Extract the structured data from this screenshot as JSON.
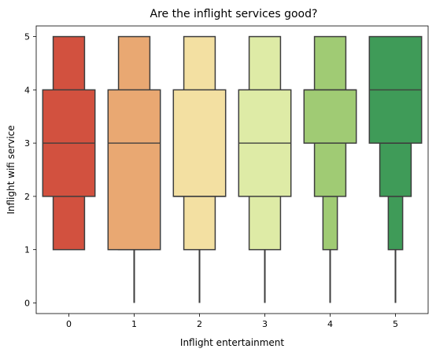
{
  "chart_data": {
    "type": "boxen",
    "title": "Are the inflight services good?",
    "xlabel": "Inflight entertainment",
    "ylabel": "Inflight wifi service",
    "categories": [
      "0",
      "1",
      "2",
      "3",
      "4",
      "5"
    ],
    "ylim": [
      -0.2,
      5.2
    ],
    "yticks": [
      "0",
      "1",
      "2",
      "3",
      "4",
      "5"
    ],
    "grid": false,
    "colors": [
      "#d2513f",
      "#e9a872",
      "#f3e0a2",
      "#deeba6",
      "#a0cb74",
      "#3f9b58"
    ],
    "boxes": [
      {
        "category": "0",
        "median": 3,
        "levels": [
          {
            "lo": 2,
            "hi": 4
          },
          {
            "lo": 1,
            "hi": 5
          }
        ],
        "whisker": null
      },
      {
        "category": "1",
        "median": 3,
        "levels": [
          {
            "lo": 1,
            "hi": 4
          },
          {
            "lo": 1,
            "hi": 5
          }
        ],
        "whisker": [
          0,
          1
        ]
      },
      {
        "category": "2",
        "median": 2,
        "levels": [
          {
            "lo": 2,
            "hi": 4
          },
          {
            "lo": 1,
            "hi": 5
          }
        ],
        "whisker": [
          0,
          1
        ]
      },
      {
        "category": "3",
        "median": 3,
        "levels": [
          {
            "lo": 2,
            "hi": 4
          },
          {
            "lo": 1,
            "hi": 5
          }
        ],
        "whisker": [
          0,
          1
        ]
      },
      {
        "category": "4",
        "median": 4,
        "levels": [
          {
            "lo": 3,
            "hi": 4
          },
          {
            "lo": 2,
            "hi": 5
          },
          {
            "lo": 1,
            "hi": 2
          }
        ],
        "whisker": [
          0,
          1
        ]
      },
      {
        "category": "5",
        "median": 4,
        "levels": [
          {
            "lo": 3,
            "hi": 5
          },
          {
            "lo": 2,
            "hi": 3
          },
          {
            "lo": 1,
            "hi": 2
          }
        ],
        "whisker": [
          0,
          1
        ]
      }
    ]
  }
}
